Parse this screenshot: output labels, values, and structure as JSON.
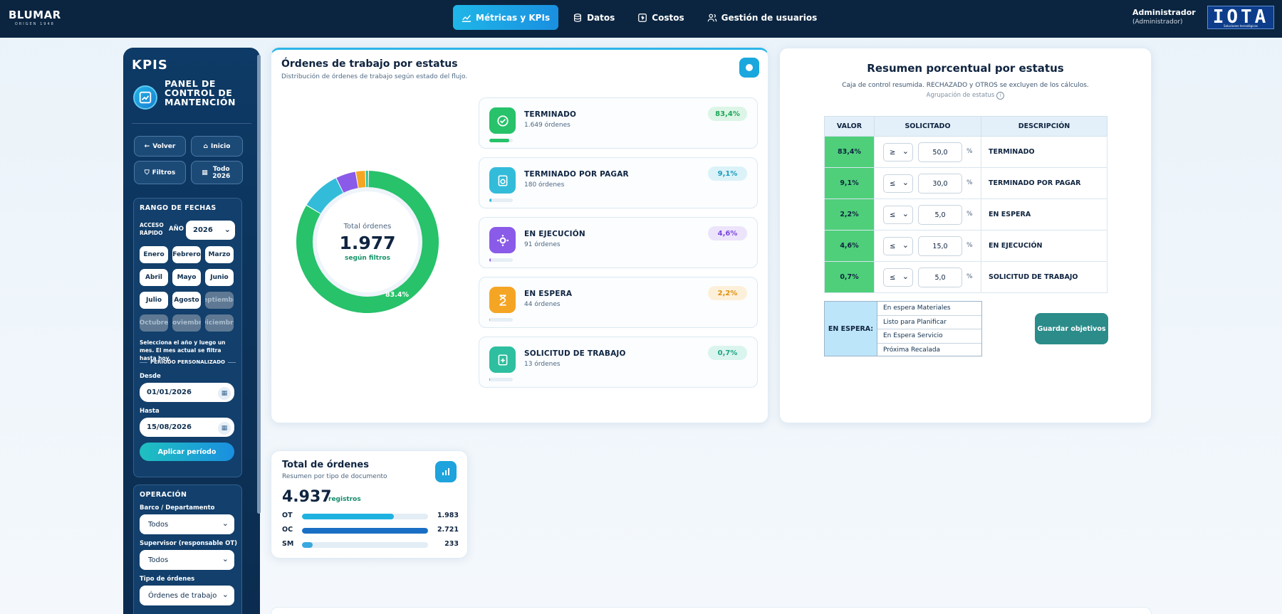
{
  "brand": {
    "name": "BLUMAR",
    "tagline": "ORIGEN 1948"
  },
  "nav": {
    "items": [
      {
        "label": "Métricas y KPIs",
        "icon": "chart-line-icon"
      },
      {
        "label": "Datos",
        "icon": "database-icon"
      },
      {
        "label": "Costos",
        "icon": "coins-icon"
      },
      {
        "label": "Gestión de usuarios",
        "icon": "users-icon"
      }
    ]
  },
  "user": {
    "name": "Administrador",
    "role": "(Administrador)"
  },
  "logo": {
    "text": "IOTA",
    "sub": "Soluciones tecnológicas"
  },
  "sidebar": {
    "kpis": "KPIS",
    "panel_title": "PANEL DE CONTROL DE MANTENCIÓN",
    "buttons": {
      "back": "Volver",
      "home": "Inicio",
      "filters": "Filtros",
      "all": "Todo 2026"
    },
    "dates": {
      "title": "RANGO DE FECHAS",
      "quick_label": "ACCESO RÁPIDO",
      "year_label": "AÑO",
      "year_value": "2026",
      "months": [
        "Enero",
        "Febrero",
        "Marzo",
        "Abril",
        "Mayo",
        "Junio",
        "Julio",
        "Agosto",
        "Septiembre",
        "Octubre",
        "Noviembre",
        "Diciembre"
      ],
      "hint": "Selecciona el año y luego un mes. El mes actual se filtra hasta hoy.",
      "custom_label": "PERÍODO PERSONALIZADO",
      "from_label": "Desde",
      "from_value": "01/01/2026",
      "to_label": "Hasta",
      "to_value": "15/08/2026",
      "apply": "Aplicar período"
    },
    "operation": {
      "title": "OPERACIÓN",
      "dept_label": "Barco / Departamento",
      "dept_value": "Todos",
      "sup_label": "Supervisor (responsable OT)",
      "sup_value": "Todos",
      "type_label": "Tipo de órdenes",
      "type_value": "Órdenes de trabajo"
    }
  },
  "status_card": {
    "title": "Órdenes de trabajo por estatus",
    "subtitle": "Distribución de órdenes de trabajo según estado del flujo.",
    "total_label": "Total órdenes",
    "total_value": "1.977",
    "total_sub": "según filtros",
    "donut_label": "83.4%",
    "items": [
      {
        "name": "TERMINADO",
        "count": "1.649 órdenes",
        "pct": "83,4%",
        "fraction": 0.834,
        "color": "#27c26a",
        "pill_bg": "#dcf5e6",
        "pill_fg": "#1fa659"
      },
      {
        "name": "TERMINADO POR PAGAR",
        "count": "180 órdenes",
        "pct": "9,1%",
        "fraction": 0.091,
        "color": "#33bcd9",
        "pill_bg": "#dbf2f8",
        "pill_fg": "#1a9cbc"
      },
      {
        "name": "EN EJECUCIÓN",
        "count": "91 órdenes",
        "pct": "4,6%",
        "fraction": 0.046,
        "color": "#8a5ae8",
        "pill_bg": "#ece4fb",
        "pill_fg": "#7a46de"
      },
      {
        "name": "EN ESPERA",
        "count": "44 órdenes",
        "pct": "2,2%",
        "fraction": 0.022,
        "color": "#f5a524",
        "pill_bg": "#fdf0da",
        "pill_fg": "#e08f0e"
      },
      {
        "name": "SOLICITUD DE TRABAJO",
        "count": "13 órdenes",
        "pct": "0,7%",
        "fraction": 0.007,
        "color": "#2dbf9f",
        "pill_bg": "#daf4ee",
        "pill_fg": "#1ea386"
      }
    ]
  },
  "summary": {
    "title": "Resumen porcentual por estatus",
    "subtitle": "Caja de control resumida. RECHAZADO y OTROS se excluyen de los cálculos.",
    "grouping": "Agrupación de estatus",
    "headers": [
      "VALOR",
      "SOLICITADO",
      "DESCRIPCIÓN"
    ],
    "rows": [
      {
        "value": "83,4%",
        "op": "≥",
        "target": "50,0",
        "desc": "TERMINADO"
      },
      {
        "value": "9,1%",
        "op": "≤",
        "target": "30,0",
        "desc": "TERMINADO POR PAGAR"
      },
      {
        "value": "2,2%",
        "op": "≤",
        "target": "5,0",
        "desc": "EN ESPERA"
      },
      {
        "value": "4,6%",
        "op": "≤",
        "target": "15,0",
        "desc": "EN EJECUCIÓN"
      },
      {
        "value": "0,7%",
        "op": "≤",
        "target": "5,0",
        "desc": "SOLICITUD DE TRABAJO"
      }
    ],
    "pct_sign": "%",
    "waiting_label": "EN ESPERA:",
    "waiting_items": [
      "En espera Materiales",
      "Listo para Planificar",
      "En Espera Servicio",
      "Próxima Recalada"
    ],
    "save": "Guardar objetivos"
  },
  "totals": {
    "title": "Total de órdenes",
    "subtitle": "Resumen por tipo de documento",
    "value": "4.937",
    "unit": "registros",
    "rows": [
      {
        "label": "OT",
        "value": "1.983",
        "fraction": 0.73,
        "color": "#1fb2e0"
      },
      {
        "label": "OC",
        "value": "2.721",
        "fraction": 1.0,
        "color": "#1a6fc4"
      },
      {
        "label": "SM",
        "value": "233",
        "fraction": 0.085,
        "color": "#3aa9df"
      }
    ]
  }
}
